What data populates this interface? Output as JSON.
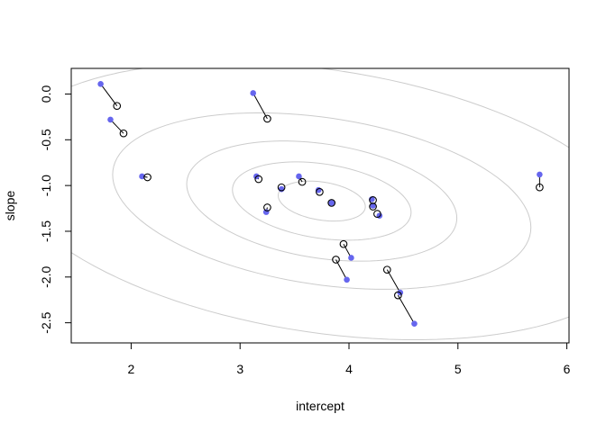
{
  "chart_data": {
    "type": "scatter",
    "title": "",
    "xlabel": "intercept",
    "ylabel": "slope",
    "xlim": [
      1.45,
      6.02
    ],
    "ylim": [
      -2.72,
      0.28
    ],
    "xticks": [
      2,
      3,
      4,
      5,
      6
    ],
    "yticks": [
      0.0,
      -0.5,
      -1.0,
      -1.5,
      -2.0,
      -2.5
    ],
    "xtick_labels": [
      "2",
      "3",
      "4",
      "5",
      "6"
    ],
    "ytick_labels": [
      "0.0",
      "-0.5",
      "-1.0",
      "-1.5",
      "-2.0",
      "-2.5"
    ],
    "grid": false,
    "colors": {
      "raw_fill": "#6666ee",
      "shrunk_stroke": "#000000",
      "segment": "#000000",
      "contour": "#cccccc",
      "frame": "#000000"
    },
    "contours": {
      "center": [
        3.75,
        -1.17
      ],
      "levels": [
        {
          "rx": 0.4,
          "ry": 0.21
        },
        {
          "rx": 0.82,
          "ry": 0.41
        },
        {
          "rx": 1.24,
          "ry": 0.63
        },
        {
          "rx": 1.92,
          "ry": 0.92
        },
        {
          "rx": 2.95,
          "ry": 1.45
        }
      ],
      "tilt": -0.15
    },
    "series": [
      {
        "x": [
          1.72,
          1.81,
          2.1,
          3.12,
          3.15,
          3.24,
          3.38,
          3.54,
          3.72,
          3.84,
          3.98,
          4.02,
          4.21,
          4.22,
          4.28,
          4.47,
          4.6,
          5.75
        ],
        "y": [
          0.11,
          -0.28,
          -0.9,
          0.01,
          -0.9,
          -1.29,
          -1.04,
          -0.9,
          -1.05,
          -1.19,
          -2.03,
          -1.79,
          -1.15,
          -1.22,
          -1.33,
          -2.17,
          -2.51,
          -0.88
        ]
      },
      {
        "x": [
          1.87,
          1.93,
          2.15,
          3.25,
          3.17,
          3.25,
          3.38,
          3.57,
          3.73,
          3.84,
          3.88,
          3.95,
          4.22,
          4.22,
          4.26,
          4.35,
          4.45,
          5.75
        ],
        "y": [
          -0.13,
          -0.43,
          -0.91,
          -0.27,
          -0.93,
          -1.24,
          -1.02,
          -0.96,
          -1.07,
          -1.19,
          -1.81,
          -1.64,
          -1.16,
          -1.23,
          -1.31,
          -1.92,
          -2.2,
          -1.02
        ]
      }
    ]
  }
}
